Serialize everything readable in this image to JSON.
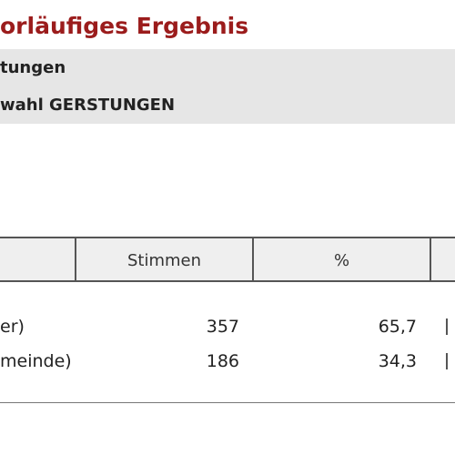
{
  "header": {
    "title": "orläufiges Ergebnis"
  },
  "info": {
    "line1": "tungen",
    "line2": "wahl GERSTUNGEN"
  },
  "table": {
    "columns": [
      "",
      "Stimmen",
      "%",
      ""
    ],
    "rows": [
      {
        "name": "er)",
        "votes": "357",
        "percent": "65,7"
      },
      {
        "name": "meinde)",
        "votes": "186",
        "percent": "34,3"
      }
    ]
  }
}
